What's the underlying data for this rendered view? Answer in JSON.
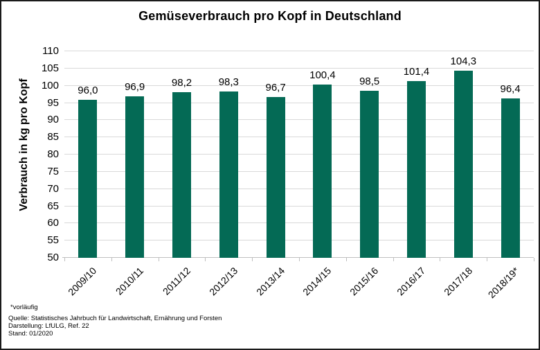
{
  "chart_data": {
    "type": "bar",
    "title": "Gemüseverbrauch pro Kopf in Deutschland",
    "ylabel": "Verbrauch in kg pro Kopf",
    "xlabel": "",
    "categories": [
      "2009/10",
      "2010/11",
      "2011/12",
      "2012/13",
      "2013/14",
      "2014/15",
      "2015/16",
      "2016/17",
      "2017/18",
      "2018/19*"
    ],
    "values": [
      96.0,
      96.9,
      98.2,
      98.3,
      96.7,
      100.4,
      98.5,
      101.4,
      104.3,
      96.4
    ],
    "value_labels": [
      "96,0",
      "96,9",
      "98,2",
      "98,3",
      "96,7",
      "100,4",
      "98,5",
      "101,4",
      "104,3",
      "96,4"
    ],
    "ylim": [
      50,
      110
    ],
    "yticks": [
      50,
      55,
      60,
      65,
      70,
      75,
      80,
      85,
      90,
      95,
      100,
      105,
      110
    ],
    "grid": true,
    "legend": "none",
    "bar_color": "#046A55",
    "grid_color": "#D9D9D9",
    "axis_color": "#BFBFBF",
    "text_color": "#000000"
  },
  "footnote": "*vorläufig",
  "source_lines": [
    "Quelle: Statistisches Jahrbuch für Landwirtschaft, Ernährung und Forsten",
    "Darstellung: LfULG, Ref. 22",
    "Stand: 01/2020"
  ]
}
